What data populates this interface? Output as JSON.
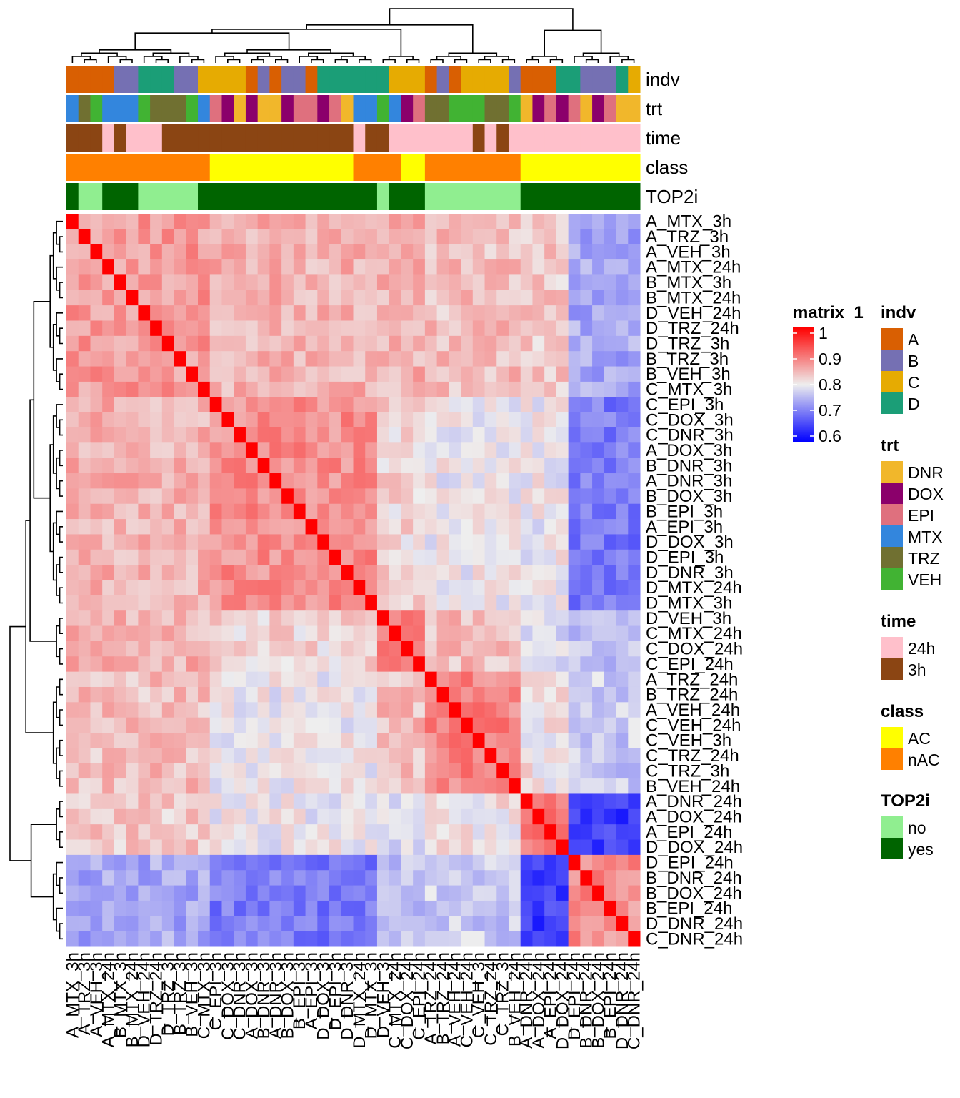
{
  "chart_data": {
    "type": "heatmap",
    "title": "",
    "labels": [
      "A_MTX_3h",
      "A_TRZ_3h",
      "A_VEH_3h",
      "A_MTX_24h",
      "B_MTX_3h",
      "B_MTX_24h",
      "D_VEH_24h",
      "D_TRZ_24h",
      "D_TRZ_3h",
      "B_TRZ_3h",
      "B_VEH_3h",
      "C_MTX_3h",
      "C_EPI_3h",
      "C_DOX_3h",
      "C_DNR_3h",
      "A_DOX_3h",
      "B_DNR_3h",
      "A_DNR_3h",
      "B_DOX_3h",
      "B_EPI_3h",
      "A_EPI_3h",
      "D_DOX_3h",
      "D_EPI_3h",
      "D_DNR_3h",
      "D_MTX_24h",
      "D_MTX_3h",
      "D_VEH_3h",
      "C_MTX_24h",
      "C_DOX_24h",
      "C_EPI_24h",
      "A_TRZ_24h",
      "B_TRZ_24h",
      "A_VEH_24h",
      "C_VEH_24h",
      "C_VEH_3h",
      "C_TRZ_24h",
      "C_TRZ_3h",
      "B_VEH_24h",
      "A_DNR_24h",
      "A_DOX_24h",
      "A_EPI_24h",
      "D_DOX_24h",
      "D_EPI_24h",
      "B_DNR_24h",
      "B_DOX_24h",
      "B_EPI_24h",
      "D_DNR_24h",
      "C_DNR_24h"
    ],
    "annotations": {
      "indv": [
        "A",
        "A",
        "A",
        "A",
        "B",
        "B",
        "D",
        "D",
        "D",
        "B",
        "B",
        "C",
        "C",
        "C",
        "C",
        "A",
        "B",
        "A",
        "B",
        "B",
        "A",
        "D",
        "D",
        "D",
        "D",
        "D",
        "D",
        "C",
        "C",
        "C",
        "A",
        "B",
        "A",
        "C",
        "C",
        "C",
        "C",
        "B",
        "A",
        "A",
        "A",
        "D",
        "D",
        "B",
        "B",
        "B",
        "D",
        "C"
      ],
      "trt": [
        "MTX",
        "TRZ",
        "VEH",
        "MTX",
        "MTX",
        "MTX",
        "VEH",
        "TRZ",
        "TRZ",
        "TRZ",
        "VEH",
        "MTX",
        "EPI",
        "DOX",
        "DNR",
        "DOX",
        "DNR",
        "DNR",
        "DOX",
        "EPI",
        "EPI",
        "DOX",
        "EPI",
        "DNR",
        "MTX",
        "MTX",
        "VEH",
        "MTX",
        "DOX",
        "EPI",
        "TRZ",
        "TRZ",
        "VEH",
        "VEH",
        "VEH",
        "TRZ",
        "TRZ",
        "VEH",
        "DNR",
        "DOX",
        "EPI",
        "DOX",
        "EPI",
        "DNR",
        "DOX",
        "EPI",
        "DNR",
        "DNR"
      ],
      "time": [
        "3h",
        "3h",
        "3h",
        "24h",
        "3h",
        "24h",
        "24h",
        "24h",
        "3h",
        "3h",
        "3h",
        "3h",
        "3h",
        "3h",
        "3h",
        "3h",
        "3h",
        "3h",
        "3h",
        "3h",
        "3h",
        "3h",
        "3h",
        "3h",
        "24h",
        "3h",
        "3h",
        "24h",
        "24h",
        "24h",
        "24h",
        "24h",
        "24h",
        "24h",
        "3h",
        "24h",
        "3h",
        "24h",
        "24h",
        "24h",
        "24h",
        "24h",
        "24h",
        "24h",
        "24h",
        "24h",
        "24h",
        "24h"
      ],
      "class": [
        "nAC",
        "nAC",
        "nAC",
        "nAC",
        "nAC",
        "nAC",
        "nAC",
        "nAC",
        "nAC",
        "nAC",
        "nAC",
        "nAC",
        "AC",
        "AC",
        "AC",
        "AC",
        "AC",
        "AC",
        "AC",
        "AC",
        "AC",
        "AC",
        "AC",
        "AC",
        "nAC",
        "nAC",
        "nAC",
        "nAC",
        "AC",
        "AC",
        "nAC",
        "nAC",
        "nAC",
        "nAC",
        "nAC",
        "nAC",
        "nAC",
        "nAC",
        "AC",
        "AC",
        "AC",
        "AC",
        "AC",
        "AC",
        "AC",
        "AC",
        "AC",
        "AC"
      ],
      "TOP2i": [
        "yes",
        "no",
        "no",
        "yes",
        "yes",
        "yes",
        "no",
        "no",
        "no",
        "no",
        "no",
        "yes",
        "yes",
        "yes",
        "yes",
        "yes",
        "yes",
        "yes",
        "yes",
        "yes",
        "yes",
        "yes",
        "yes",
        "yes",
        "yes",
        "yes",
        "no",
        "yes",
        "yes",
        "yes",
        "no",
        "no",
        "no",
        "no",
        "no",
        "no",
        "no",
        "no",
        "yes",
        "yes",
        "yes",
        "yes",
        "yes",
        "yes",
        "yes",
        "yes",
        "yes",
        "yes"
      ]
    },
    "annotation_names": [
      "indv",
      "trt",
      "time",
      "class",
      "TOP2i"
    ],
    "clusters": [
      12,
      14,
      4,
      8,
      4,
      6
    ],
    "block_means": [
      [
        0.86,
        0.85,
        0.85,
        0.84,
        0.83,
        0.74
      ],
      [
        0.85,
        0.87,
        0.82,
        0.8,
        0.8,
        0.7
      ],
      [
        0.85,
        0.82,
        0.89,
        0.84,
        0.78,
        0.76
      ],
      [
        0.84,
        0.8,
        0.84,
        0.88,
        0.81,
        0.77
      ],
      [
        0.83,
        0.8,
        0.78,
        0.81,
        0.88,
        0.65
      ],
      [
        0.74,
        0.7,
        0.76,
        0.77,
        0.65,
        0.87
      ]
    ],
    "colorbar": {
      "title": "matrix_1",
      "ticks": [
        "1",
        "0.9",
        "0.8",
        "0.7",
        "0.6"
      ],
      "range": [
        0.6,
        1.0
      ],
      "colors": [
        "#0000FF",
        "#EEEEEE",
        "#FF0000"
      ]
    },
    "legends": [
      {
        "title": "indv",
        "items": [
          {
            "label": "A",
            "color": "#D95F02"
          },
          {
            "label": "B",
            "color": "#7570B3"
          },
          {
            "label": "C",
            "color": "#E6AB02"
          },
          {
            "label": "D",
            "color": "#1B9E77"
          }
        ]
      },
      {
        "title": "trt",
        "items": [
          {
            "label": "DNR",
            "color": "#F1B72B"
          },
          {
            "label": "DOX",
            "color": "#8B006B"
          },
          {
            "label": "EPI",
            "color": "#DF707E"
          },
          {
            "label": "MTX",
            "color": "#3386DD"
          },
          {
            "label": "TRZ",
            "color": "#707031"
          },
          {
            "label": "VEH",
            "color": "#41B333"
          }
        ]
      },
      {
        "title": "time",
        "items": [
          {
            "label": "24h",
            "color": "#FFC0CB"
          },
          {
            "label": "3h",
            "color": "#8B4513"
          }
        ]
      },
      {
        "title": "class",
        "items": [
          {
            "label": "AC",
            "color": "#FFFF00"
          },
          {
            "label": "nAC",
            "color": "#FF8000"
          }
        ]
      },
      {
        "title": "TOP2i",
        "items": [
          {
            "label": "no",
            "color": "#90EE90"
          },
          {
            "label": "yes",
            "color": "#006400"
          }
        ]
      }
    ]
  }
}
